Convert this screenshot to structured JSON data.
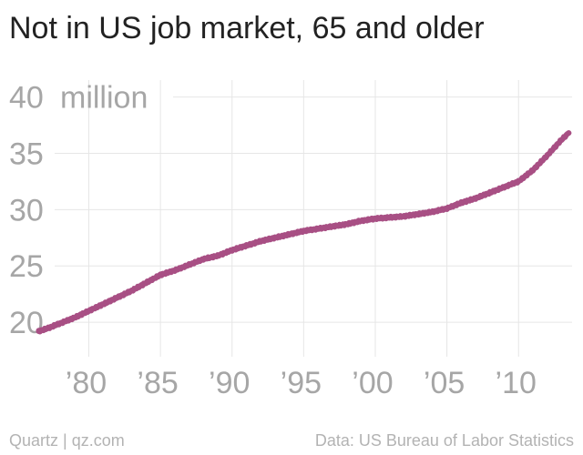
{
  "header": {
    "title": "Not in US job market, 65 and older"
  },
  "footer": {
    "credit": "Quartz | qz.com",
    "source": "Data: US Bureau of Labor Statistics"
  },
  "colors": {
    "series": "#a84f84",
    "grid": "#e6e6e6",
    "tick_text": "#a6a6a6",
    "title": "#222222"
  },
  "chart_data": {
    "type": "line",
    "title": "Not in US job market, 65 and older",
    "xlabel": "",
    "ylabel": "",
    "y_unit_label": "million",
    "xlim": [
      1973.8,
      2014.5
    ],
    "ylim": [
      17.5,
      41.5
    ],
    "x_ticks": [
      1980,
      1985,
      1990,
      1995,
      2000,
      2005,
      2010
    ],
    "x_tick_labels": [
      "’80",
      "’85",
      "’90",
      "’95",
      "’00",
      "’05",
      "’10"
    ],
    "y_ticks": [
      20,
      25,
      30,
      35,
      40
    ],
    "y_tick_labels": [
      "20",
      "25",
      "30",
      "35",
      "40"
    ],
    "grid": true,
    "legend": "none",
    "series": [
      {
        "x": [
          1976.5,
          1977,
          1978,
          1979,
          1980,
          1981,
          1982,
          1983,
          1984,
          1985,
          1986,
          1987,
          1988,
          1989,
          1990,
          1991,
          1992,
          1993,
          1994,
          1995,
          1996,
          1997,
          1998,
          1999,
          2000,
          2001,
          2002,
          2003,
          2004,
          2005,
          2006,
          2007,
          2008,
          2009,
          2010,
          2011,
          2012,
          2012.5,
          2013,
          2013.5
        ],
        "y": [
          19.2,
          19.4,
          19.9,
          20.4,
          21.0,
          21.6,
          22.2,
          22.8,
          23.5,
          24.2,
          24.6,
          25.1,
          25.6,
          25.9,
          26.4,
          26.8,
          27.2,
          27.5,
          27.8,
          28.1,
          28.3,
          28.5,
          28.7,
          29.0,
          29.2,
          29.3,
          29.4,
          29.6,
          29.8,
          30.1,
          30.6,
          31.0,
          31.5,
          32.0,
          32.5,
          33.5,
          34.8,
          35.5,
          36.2,
          36.8
        ]
      }
    ]
  }
}
